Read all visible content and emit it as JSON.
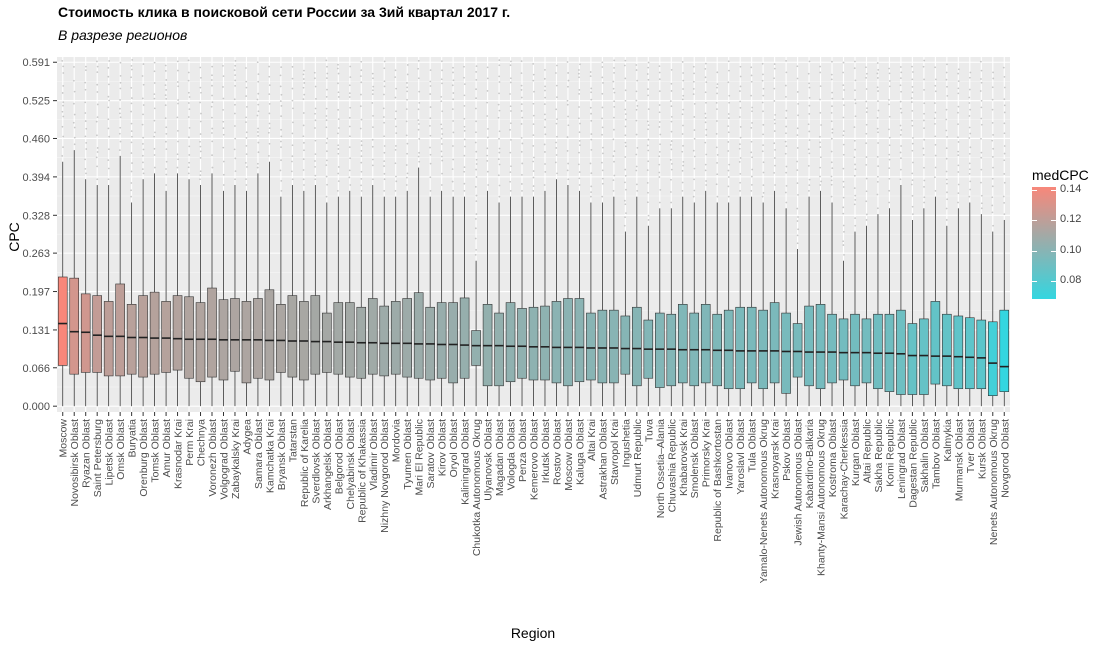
{
  "chart_data": {
    "type": "boxplot",
    "title": "Стоимость клика в поисковой сети России за 3ий квартал 2017 г.",
    "subtitle": "В разрезе регионов",
    "xlabel": "Region",
    "ylabel": "CPC",
    "yticks": [
      "0.000",
      "0.066",
      "0.131",
      "0.197",
      "0.263",
      "0.328",
      "0.394",
      "0.460",
      "0.525",
      "0.591"
    ],
    "ylim": [
      -0.01,
      0.6
    ],
    "legend": {
      "title": "medCPC",
      "labels": [
        "0.14",
        "0.12",
        "0.10",
        "0.08"
      ],
      "values": [
        0.14,
        0.12,
        0.1,
        0.08
      ],
      "range": [
        0.068,
        0.142
      ],
      "low_color": "#33D6E0",
      "high_color": "#F8877A",
      "position": "right"
    },
    "series": [
      {
        "region": "Moscow",
        "median": 0.142,
        "q1": 0.07,
        "q3": 0.222,
        "lo": 0.0,
        "hi": 0.42
      },
      {
        "region": "Novosibirsk Oblast",
        "median": 0.128,
        "q1": 0.055,
        "q3": 0.22,
        "lo": 0.0,
        "hi": 0.44
      },
      {
        "region": "Ryazan Oblast",
        "median": 0.127,
        "q1": 0.058,
        "q3": 0.193,
        "lo": 0.0,
        "hi": 0.39
      },
      {
        "region": "Saint Petersburg",
        "median": 0.122,
        "q1": 0.058,
        "q3": 0.19,
        "lo": 0.0,
        "hi": 0.38
      },
      {
        "region": "Lipetsk Oblast",
        "median": 0.12,
        "q1": 0.052,
        "q3": 0.18,
        "lo": 0.0,
        "hi": 0.38
      },
      {
        "region": "Omsk Oblast",
        "median": 0.12,
        "q1": 0.052,
        "q3": 0.21,
        "lo": 0.0,
        "hi": 0.43
      },
      {
        "region": "Buryatia",
        "median": 0.118,
        "q1": 0.055,
        "q3": 0.175,
        "lo": 0.0,
        "hi": 0.35
      },
      {
        "region": "Orenburg Oblast",
        "median": 0.118,
        "q1": 0.05,
        "q3": 0.19,
        "lo": 0.0,
        "hi": 0.39
      },
      {
        "region": "Tomsk Oblast",
        "median": 0.117,
        "q1": 0.055,
        "q3": 0.196,
        "lo": 0.0,
        "hi": 0.4
      },
      {
        "region": "Amur Oblast",
        "median": 0.117,
        "q1": 0.058,
        "q3": 0.18,
        "lo": 0.0,
        "hi": 0.37
      },
      {
        "region": "Krasnodar Krai",
        "median": 0.116,
        "q1": 0.062,
        "q3": 0.19,
        "lo": 0.0,
        "hi": 0.4
      },
      {
        "region": "Perm Krai",
        "median": 0.115,
        "q1": 0.048,
        "q3": 0.188,
        "lo": 0.0,
        "hi": 0.39
      },
      {
        "region": "Chechnya",
        "median": 0.115,
        "q1": 0.042,
        "q3": 0.178,
        "lo": 0.0,
        "hi": 0.38
      },
      {
        "region": "Voronezh Oblast",
        "median": 0.115,
        "q1": 0.05,
        "q3": 0.203,
        "lo": 0.0,
        "hi": 0.4
      },
      {
        "region": "Volgograd Oblast",
        "median": 0.114,
        "q1": 0.045,
        "q3": 0.183,
        "lo": 0.0,
        "hi": 0.37
      },
      {
        "region": "Zabaykalsky Krai",
        "median": 0.114,
        "q1": 0.06,
        "q3": 0.185,
        "lo": 0.0,
        "hi": 0.38
      },
      {
        "region": "Adygea",
        "median": 0.114,
        "q1": 0.04,
        "q3": 0.18,
        "lo": 0.0,
        "hi": 0.37
      },
      {
        "region": "Samara Oblast",
        "median": 0.114,
        "q1": 0.048,
        "q3": 0.185,
        "lo": 0.0,
        "hi": 0.4
      },
      {
        "region": "Kamchatka Krai",
        "median": 0.113,
        "q1": 0.045,
        "q3": 0.2,
        "lo": 0.0,
        "hi": 0.42
      },
      {
        "region": "Bryansk Oblast",
        "median": 0.113,
        "q1": 0.058,
        "q3": 0.175,
        "lo": 0.0,
        "hi": 0.36
      },
      {
        "region": "Tatarstan",
        "median": 0.112,
        "q1": 0.05,
        "q3": 0.19,
        "lo": 0.0,
        "hi": 0.38
      },
      {
        "region": "Republic of Karelia",
        "median": 0.112,
        "q1": 0.045,
        "q3": 0.18,
        "lo": 0.0,
        "hi": 0.37
      },
      {
        "region": "Sverdlovsk Oblast",
        "median": 0.111,
        "q1": 0.055,
        "q3": 0.19,
        "lo": 0.0,
        "hi": 0.38
      },
      {
        "region": "Arkhangelsk Oblast",
        "median": 0.111,
        "q1": 0.058,
        "q3": 0.16,
        "lo": 0.0,
        "hi": 0.35
      },
      {
        "region": "Belgorod Oblast",
        "median": 0.11,
        "q1": 0.055,
        "q3": 0.178,
        "lo": 0.0,
        "hi": 0.36
      },
      {
        "region": "Chelyabinsk Oblast",
        "median": 0.11,
        "q1": 0.05,
        "q3": 0.178,
        "lo": 0.0,
        "hi": 0.37
      },
      {
        "region": "Republic of Khakassia",
        "median": 0.109,
        "q1": 0.048,
        "q3": 0.17,
        "lo": 0.0,
        "hi": 0.36
      },
      {
        "region": "Vladimir Oblast",
        "median": 0.109,
        "q1": 0.055,
        "q3": 0.185,
        "lo": 0.0,
        "hi": 0.38
      },
      {
        "region": "Nizhny Novgorod Oblast",
        "median": 0.108,
        "q1": 0.052,
        "q3": 0.172,
        "lo": 0.0,
        "hi": 0.36
      },
      {
        "region": "Mordovia",
        "median": 0.108,
        "q1": 0.055,
        "q3": 0.18,
        "lo": 0.0,
        "hi": 0.36
      },
      {
        "region": "Tyumen Oblast",
        "median": 0.108,
        "q1": 0.05,
        "q3": 0.185,
        "lo": 0.0,
        "hi": 0.37
      },
      {
        "region": "Mari El Republic",
        "median": 0.107,
        "q1": 0.048,
        "q3": 0.195,
        "lo": 0.0,
        "hi": 0.41
      },
      {
        "region": "Saratov Oblast",
        "median": 0.107,
        "q1": 0.045,
        "q3": 0.17,
        "lo": 0.0,
        "hi": 0.36
      },
      {
        "region": "Kirov Oblast",
        "median": 0.106,
        "q1": 0.048,
        "q3": 0.178,
        "lo": 0.0,
        "hi": 0.37
      },
      {
        "region": "Oryol Oblast",
        "median": 0.106,
        "q1": 0.04,
        "q3": 0.178,
        "lo": 0.0,
        "hi": 0.36
      },
      {
        "region": "Kaliningrad Oblast",
        "median": 0.105,
        "q1": 0.048,
        "q3": 0.186,
        "lo": 0.0,
        "hi": 0.36
      },
      {
        "region": "Chukotka Autonomous Okrug",
        "median": 0.104,
        "q1": 0.07,
        "q3": 0.13,
        "lo": 0.0,
        "hi": 0.25
      },
      {
        "region": "Ulyanovsk Oblast",
        "median": 0.104,
        "q1": 0.035,
        "q3": 0.175,
        "lo": 0.0,
        "hi": 0.37
      },
      {
        "region": "Magadan Oblast",
        "median": 0.104,
        "q1": 0.035,
        "q3": 0.16,
        "lo": 0.0,
        "hi": 0.35
      },
      {
        "region": "Vologda Oblast",
        "median": 0.103,
        "q1": 0.042,
        "q3": 0.178,
        "lo": 0.0,
        "hi": 0.36
      },
      {
        "region": "Penza Oblast",
        "median": 0.103,
        "q1": 0.048,
        "q3": 0.168,
        "lo": 0.0,
        "hi": 0.36
      },
      {
        "region": "Kemerovo Oblast",
        "median": 0.102,
        "q1": 0.045,
        "q3": 0.17,
        "lo": 0.0,
        "hi": 0.36
      },
      {
        "region": "Irkutsk Oblast",
        "median": 0.102,
        "q1": 0.045,
        "q3": 0.172,
        "lo": 0.0,
        "hi": 0.37
      },
      {
        "region": "Rostov Oblast",
        "median": 0.101,
        "q1": 0.04,
        "q3": 0.18,
        "lo": 0.0,
        "hi": 0.39
      },
      {
        "region": "Moscow Oblast",
        "median": 0.101,
        "q1": 0.035,
        "q3": 0.185,
        "lo": 0.0,
        "hi": 0.38
      },
      {
        "region": "Kaluga Oblast",
        "median": 0.101,
        "q1": 0.042,
        "q3": 0.185,
        "lo": 0.0,
        "hi": 0.37
      },
      {
        "region": "Altai Krai",
        "median": 0.1,
        "q1": 0.045,
        "q3": 0.16,
        "lo": 0.0,
        "hi": 0.35
      },
      {
        "region": "Astrakhan Oblast",
        "median": 0.1,
        "q1": 0.04,
        "q3": 0.165,
        "lo": 0.0,
        "hi": 0.35
      },
      {
        "region": "Stavropol Krai",
        "median": 0.1,
        "q1": 0.04,
        "q3": 0.165,
        "lo": 0.0,
        "hi": 0.36
      },
      {
        "region": "Ingushetia",
        "median": 0.099,
        "q1": 0.055,
        "q3": 0.155,
        "lo": 0.0,
        "hi": 0.3
      },
      {
        "region": "Udmurt Republic",
        "median": 0.099,
        "q1": 0.035,
        "q3": 0.17,
        "lo": 0.0,
        "hi": 0.36
      },
      {
        "region": "Tuva",
        "median": 0.098,
        "q1": 0.048,
        "q3": 0.148,
        "lo": 0.0,
        "hi": 0.31
      },
      {
        "region": "North Ossetia–Alania",
        "median": 0.098,
        "q1": 0.032,
        "q3": 0.16,
        "lo": 0.0,
        "hi": 0.34
      },
      {
        "region": "Chuvashia Republic",
        "median": 0.098,
        "q1": 0.035,
        "q3": 0.158,
        "lo": 0.0,
        "hi": 0.34
      },
      {
        "region": "Khabarovsk Krai",
        "median": 0.097,
        "q1": 0.04,
        "q3": 0.175,
        "lo": 0.0,
        "hi": 0.36
      },
      {
        "region": "Smolensk Oblast",
        "median": 0.097,
        "q1": 0.035,
        "q3": 0.16,
        "lo": 0.0,
        "hi": 0.35
      },
      {
        "region": "Primorsky Krai",
        "median": 0.097,
        "q1": 0.04,
        "q3": 0.175,
        "lo": 0.0,
        "hi": 0.37
      },
      {
        "region": "Republic of Bashkortostan",
        "median": 0.096,
        "q1": 0.035,
        "q3": 0.158,
        "lo": 0.0,
        "hi": 0.35
      },
      {
        "region": "Ivanovo Oblast",
        "median": 0.096,
        "q1": 0.03,
        "q3": 0.165,
        "lo": 0.0,
        "hi": 0.35
      },
      {
        "region": "Yaroslavl Oblast",
        "median": 0.095,
        "q1": 0.03,
        "q3": 0.17,
        "lo": 0.0,
        "hi": 0.36
      },
      {
        "region": "Tula Oblast",
        "median": 0.095,
        "q1": 0.04,
        "q3": 0.17,
        "lo": 0.0,
        "hi": 0.36
      },
      {
        "region": "Yamalo-Nenets Autonomous Okrug",
        "median": 0.095,
        "q1": 0.03,
        "q3": 0.165,
        "lo": 0.0,
        "hi": 0.35
      },
      {
        "region": "Krasnoyarsk Krai",
        "median": 0.095,
        "q1": 0.04,
        "q3": 0.178,
        "lo": 0.0,
        "hi": 0.37
      },
      {
        "region": "Pskov Oblast",
        "median": 0.094,
        "q1": 0.022,
        "q3": 0.16,
        "lo": 0.0,
        "hi": 0.34
      },
      {
        "region": "Jewish Autonomous Oblast",
        "median": 0.094,
        "q1": 0.05,
        "q3": 0.142,
        "lo": 0.0,
        "hi": 0.27
      },
      {
        "region": "Kabardino-Balkaria",
        "median": 0.093,
        "q1": 0.035,
        "q3": 0.172,
        "lo": 0.0,
        "hi": 0.36
      },
      {
        "region": "Khanty-Mansi Autonomous Okrug",
        "median": 0.093,
        "q1": 0.03,
        "q3": 0.175,
        "lo": 0.0,
        "hi": 0.37
      },
      {
        "region": "Kostroma Oblast",
        "median": 0.093,
        "q1": 0.04,
        "q3": 0.158,
        "lo": 0.0,
        "hi": 0.35
      },
      {
        "region": "Karachay-Cherkessia",
        "median": 0.092,
        "q1": 0.045,
        "q3": 0.15,
        "lo": 0.0,
        "hi": 0.25
      },
      {
        "region": "Kurgan Oblast",
        "median": 0.092,
        "q1": 0.035,
        "q3": 0.158,
        "lo": 0.0,
        "hi": 0.3
      },
      {
        "region": "Altai Republic",
        "median": 0.092,
        "q1": 0.04,
        "q3": 0.15,
        "lo": 0.0,
        "hi": 0.31
      },
      {
        "region": "Sakha Republic",
        "median": 0.091,
        "q1": 0.03,
        "q3": 0.158,
        "lo": 0.0,
        "hi": 0.33
      },
      {
        "region": "Komi Republic",
        "median": 0.091,
        "q1": 0.025,
        "q3": 0.158,
        "lo": 0.0,
        "hi": 0.34
      },
      {
        "region": "Leningrad Oblast",
        "median": 0.09,
        "q1": 0.02,
        "q3": 0.165,
        "lo": 0.0,
        "hi": 0.38
      },
      {
        "region": "Dagestan Republic",
        "median": 0.087,
        "q1": 0.02,
        "q3": 0.142,
        "lo": 0.0,
        "hi": 0.32
      },
      {
        "region": "Sakhalin Oblast",
        "median": 0.087,
        "q1": 0.02,
        "q3": 0.15,
        "lo": 0.0,
        "hi": 0.34
      },
      {
        "region": "Tambov Oblast",
        "median": 0.086,
        "q1": 0.038,
        "q3": 0.18,
        "lo": 0.0,
        "hi": 0.36
      },
      {
        "region": "Kalmykia",
        "median": 0.086,
        "q1": 0.035,
        "q3": 0.158,
        "lo": 0.0,
        "hi": 0.31
      },
      {
        "region": "Murmansk Oblast",
        "median": 0.085,
        "q1": 0.03,
        "q3": 0.155,
        "lo": 0.0,
        "hi": 0.34
      },
      {
        "region": "Tver Oblast",
        "median": 0.084,
        "q1": 0.03,
        "q3": 0.152,
        "lo": 0.0,
        "hi": 0.35
      },
      {
        "region": "Kursk Oblast",
        "median": 0.083,
        "q1": 0.03,
        "q3": 0.148,
        "lo": 0.0,
        "hi": 0.33
      },
      {
        "region": "Nenets Autonomous Okrug",
        "median": 0.074,
        "q1": 0.018,
        "q3": 0.145,
        "lo": 0.0,
        "hi": 0.3
      },
      {
        "region": "Novgorod Oblast",
        "median": 0.068,
        "q1": 0.025,
        "q3": 0.165,
        "lo": 0.0,
        "hi": 0.32
      }
    ]
  }
}
